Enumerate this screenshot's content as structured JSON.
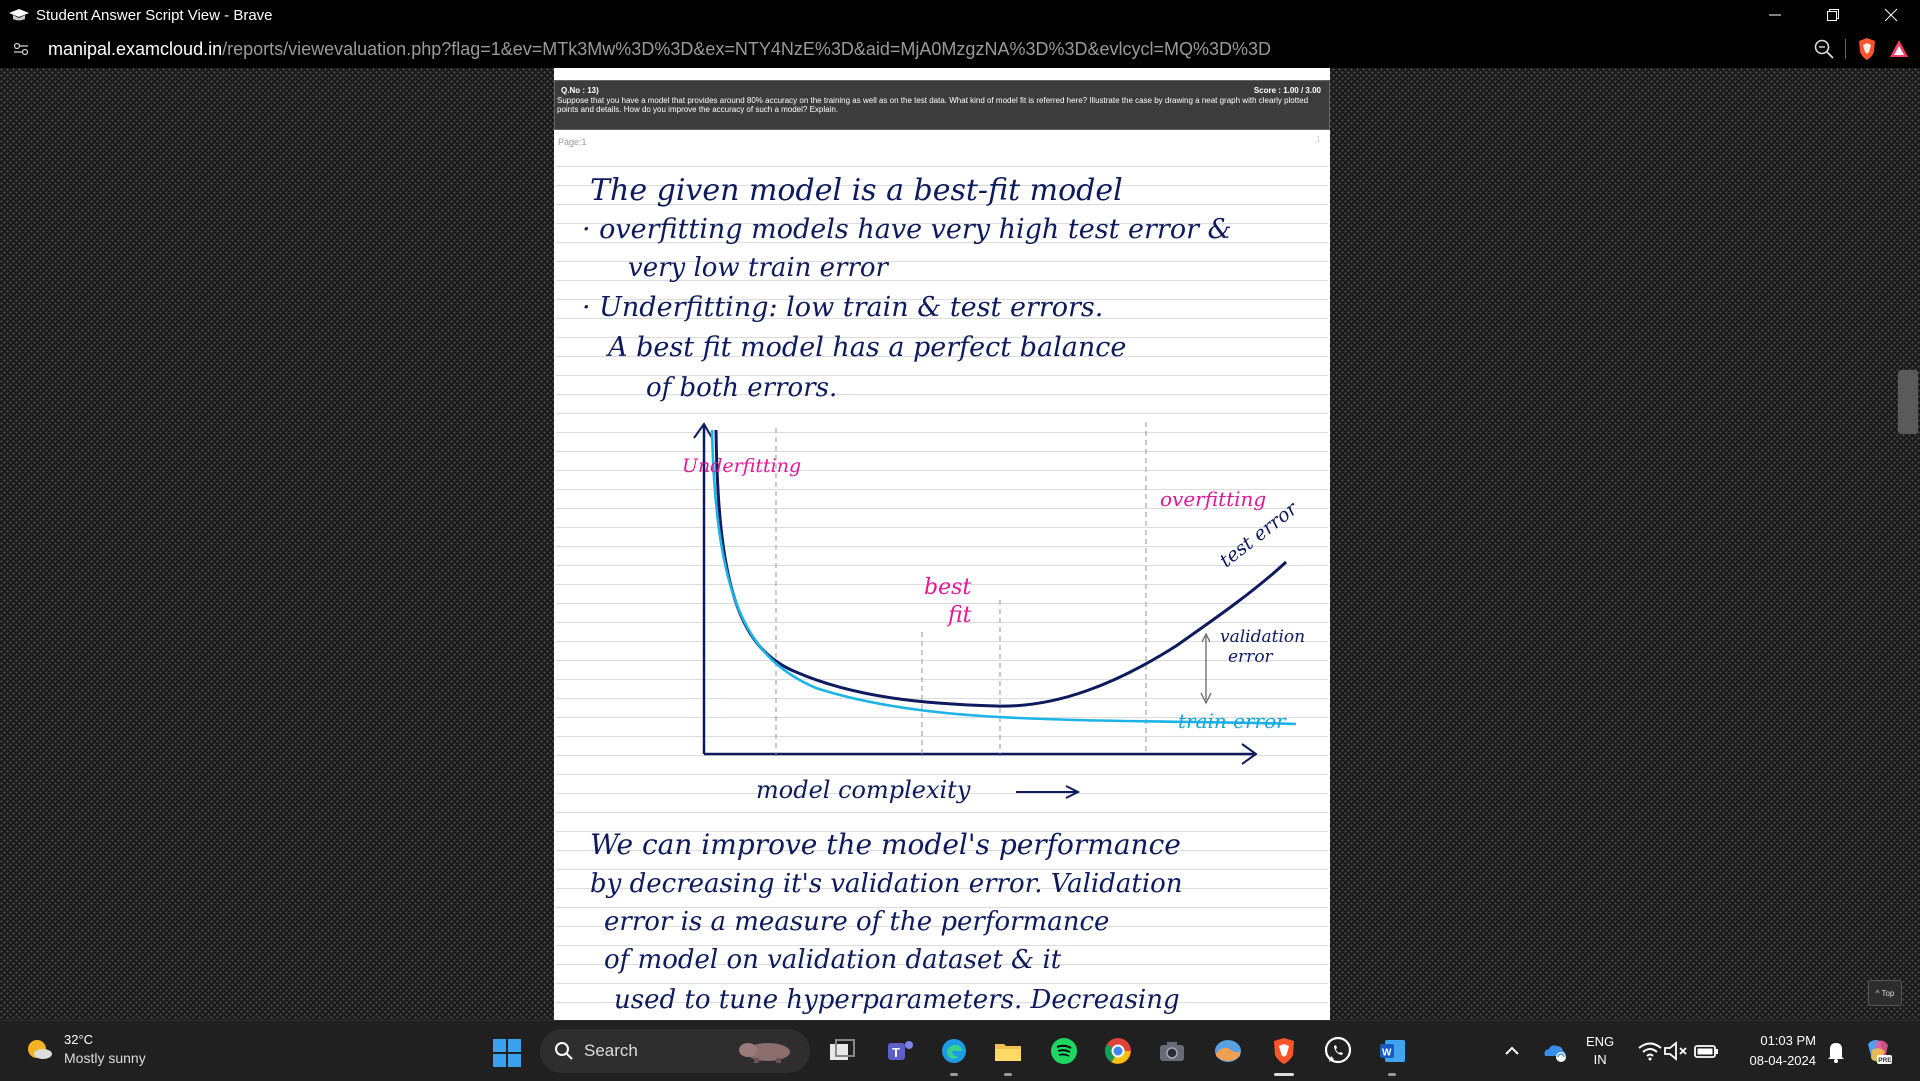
{
  "window": {
    "title": "Student Answer Script View - Brave"
  },
  "address_bar": {
    "domain": "manipal.examcloud.in",
    "path": "/reports/viewevaluation.php?flag=1&ev=MTk3Mw%3D%3D&ex=NTY4NzE%3D&aid=MjA0MzgzNA%3D%3D&evlcycl=MQ%3D%3D"
  },
  "question": {
    "number": "Q.No : 13)",
    "score": "Score : 1.00 / 3.00",
    "text": "Suppose that you have a model that provides around 80% accuracy on the training as well as on the test data. What kind of model fit is referred here? Illustrate the case by drawing a neat graph with clearly plotted points and details. How do you improve the accuracy of such a model? Explain.",
    "page_label": "Page:1",
    "page_corner": "1"
  },
  "answer": {
    "lines": [
      "The given model is a best-fit model",
      "· overfitting models have very high test error &",
      "very low train error",
      "· Underfitting: low train & test errors.",
      "A best fit model has a perfect balance",
      "of both errors."
    ],
    "graph_labels": {
      "underfitting": "Underfitting",
      "overfitting": "overfitting",
      "best_fit_1": "best",
      "best_fit_2": "fit",
      "test_error": "test error",
      "validation_1": "validation",
      "validation_2": "error",
      "train_error": "train error",
      "x_axis": "model complexity"
    },
    "lines_after": [
      "We can improve the model's performance",
      "by decreasing it's validation error. Validation",
      "error is a measure of the performance",
      "of model on validation dataset & it",
      "used to tune hyperparameters. Decreasing"
    ]
  },
  "page_controls": {
    "top_button": "^ Top"
  },
  "taskbar": {
    "weather_temp": "32°C",
    "weather_condition": "Mostly sunny",
    "search_placeholder": "Search",
    "language_1": "ENG",
    "language_2": "IN",
    "time": "01:03 PM",
    "date": "08-04-2024",
    "copilot_badge": "PRE"
  }
}
